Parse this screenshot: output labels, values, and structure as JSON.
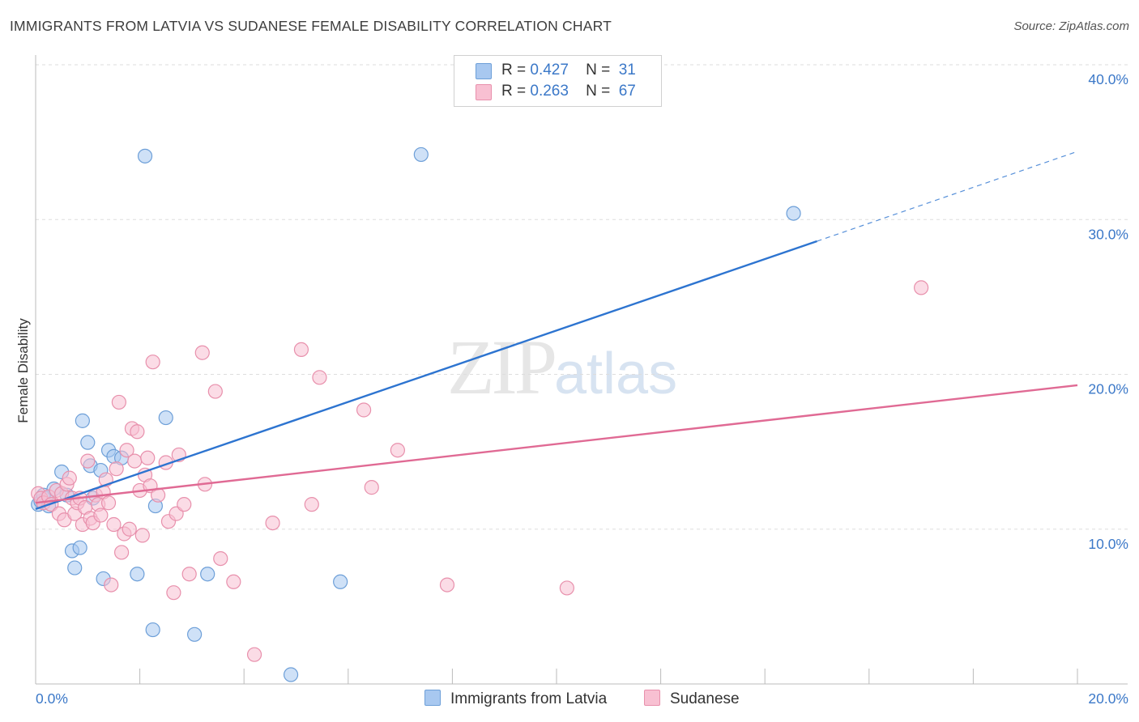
{
  "header": {
    "title": "IMMIGRANTS FROM LATVIA VS SUDANESE FEMALE DISABILITY CORRELATION CHART",
    "source": "Source: ZipAtlas.com"
  },
  "legend": {
    "rows": [
      {
        "r_label": "R =",
        "r_value": "0.427",
        "n_label": "N =",
        "n_value": "31",
        "color": "#a8c8f0",
        "border": "#6d9fd8"
      },
      {
        "r_label": "R =",
        "r_value": "0.263",
        "n_label": "N =",
        "n_value": "67",
        "color": "#f8c0d2",
        "border": "#e890ac"
      }
    ]
  },
  "watermark": {
    "zip": "ZIP",
    "atlas": "atlas"
  },
  "chart_data": {
    "type": "scatter",
    "title": "IMMIGRANTS FROM LATVIA VS SUDANESE FEMALE DISABILITY CORRELATION CHART",
    "xlabel": "",
    "ylabel": "Female Disability",
    "xlim": [
      0,
      20
    ],
    "ylim": [
      0,
      40
    ],
    "x_tick_labels": [
      "0.0%",
      "20.0%"
    ],
    "y_tick_values": [
      10,
      20,
      30,
      40
    ],
    "y_tick_labels": [
      "10.0%",
      "20.0%",
      "30.0%",
      "40.0%"
    ],
    "grid": true,
    "legend_position": "top-center",
    "series": [
      {
        "name": "Immigrants from Latvia",
        "color": "#6d9fd8",
        "fill": "#a8c8f0",
        "trend_color": "#2d74d0",
        "trend": {
          "x0": 0,
          "y0": 11.3,
          "x1": 15.0,
          "y1": 28.6,
          "dash_to_x": 20.0,
          "dash_to_y": 34.4
        },
        "points": [
          [
            0.05,
            11.6
          ],
          [
            0.1,
            11.8
          ],
          [
            0.2,
            12.0
          ],
          [
            0.25,
            11.5
          ],
          [
            0.35,
            12.6
          ],
          [
            0.5,
            13.7
          ],
          [
            0.6,
            12.2
          ],
          [
            0.7,
            8.6
          ],
          [
            0.75,
            7.5
          ],
          [
            0.85,
            8.8
          ],
          [
            0.9,
            17.0
          ],
          [
            1.0,
            15.6
          ],
          [
            1.05,
            14.1
          ],
          [
            1.1,
            12.0
          ],
          [
            1.25,
            13.8
          ],
          [
            1.3,
            6.8
          ],
          [
            1.4,
            15.1
          ],
          [
            1.5,
            14.7
          ],
          [
            1.65,
            14.6
          ],
          [
            1.95,
            7.1
          ],
          [
            2.1,
            34.1
          ],
          [
            2.25,
            3.5
          ],
          [
            2.3,
            11.5
          ],
          [
            2.5,
            17.2
          ],
          [
            3.05,
            3.2
          ],
          [
            3.3,
            7.1
          ],
          [
            4.9,
            0.6
          ],
          [
            5.85,
            6.6
          ],
          [
            7.4,
            34.2
          ],
          [
            14.55,
            30.4
          ],
          [
            0.15,
            12.2
          ]
        ]
      },
      {
        "name": "Sudanese",
        "color": "#e890ac",
        "fill": "#f8c0d2",
        "trend_color": "#e06a94",
        "trend": {
          "x0": 0,
          "y0": 11.7,
          "x1": 20.0,
          "y1": 19.3
        },
        "points": [
          [
            0.05,
            12.3
          ],
          [
            0.1,
            12.0
          ],
          [
            0.15,
            11.7
          ],
          [
            0.25,
            12.1
          ],
          [
            0.3,
            11.6
          ],
          [
            0.4,
            12.5
          ],
          [
            0.45,
            11.0
          ],
          [
            0.5,
            12.3
          ],
          [
            0.55,
            10.6
          ],
          [
            0.6,
            12.9
          ],
          [
            0.65,
            13.3
          ],
          [
            0.7,
            12.0
          ],
          [
            0.75,
            11.0
          ],
          [
            0.8,
            11.7
          ],
          [
            0.85,
            12.0
          ],
          [
            0.9,
            10.3
          ],
          [
            0.95,
            11.4
          ],
          [
            1.0,
            14.4
          ],
          [
            1.05,
            10.7
          ],
          [
            1.1,
            10.4
          ],
          [
            1.15,
            12.2
          ],
          [
            1.2,
            11.6
          ],
          [
            1.25,
            10.9
          ],
          [
            1.3,
            12.4
          ],
          [
            1.35,
            13.2
          ],
          [
            1.4,
            11.7
          ],
          [
            1.45,
            6.4
          ],
          [
            1.5,
            10.3
          ],
          [
            1.55,
            13.9
          ],
          [
            1.6,
            18.2
          ],
          [
            1.65,
            8.5
          ],
          [
            1.7,
            9.7
          ],
          [
            1.75,
            15.1
          ],
          [
            1.8,
            10.0
          ],
          [
            1.85,
            16.5
          ],
          [
            1.9,
            14.4
          ],
          [
            1.95,
            16.3
          ],
          [
            2.0,
            12.5
          ],
          [
            2.05,
            9.6
          ],
          [
            2.1,
            13.5
          ],
          [
            2.15,
            14.6
          ],
          [
            2.2,
            12.8
          ],
          [
            2.25,
            20.8
          ],
          [
            2.35,
            12.2
          ],
          [
            2.5,
            14.3
          ],
          [
            2.55,
            10.5
          ],
          [
            2.65,
            5.9
          ],
          [
            2.7,
            11.0
          ],
          [
            2.75,
            14.8
          ],
          [
            2.85,
            11.6
          ],
          [
            2.95,
            7.1
          ],
          [
            3.2,
            21.4
          ],
          [
            3.25,
            12.9
          ],
          [
            3.45,
            18.9
          ],
          [
            3.55,
            8.1
          ],
          [
            3.8,
            6.6
          ],
          [
            4.2,
            1.9
          ],
          [
            4.55,
            10.4
          ],
          [
            5.1,
            21.6
          ],
          [
            5.3,
            11.6
          ],
          [
            5.45,
            19.8
          ],
          [
            6.3,
            17.7
          ],
          [
            6.45,
            12.7
          ],
          [
            6.95,
            15.1
          ],
          [
            7.9,
            6.4
          ],
          [
            10.2,
            6.2
          ],
          [
            17.0,
            25.6
          ]
        ]
      }
    ]
  }
}
